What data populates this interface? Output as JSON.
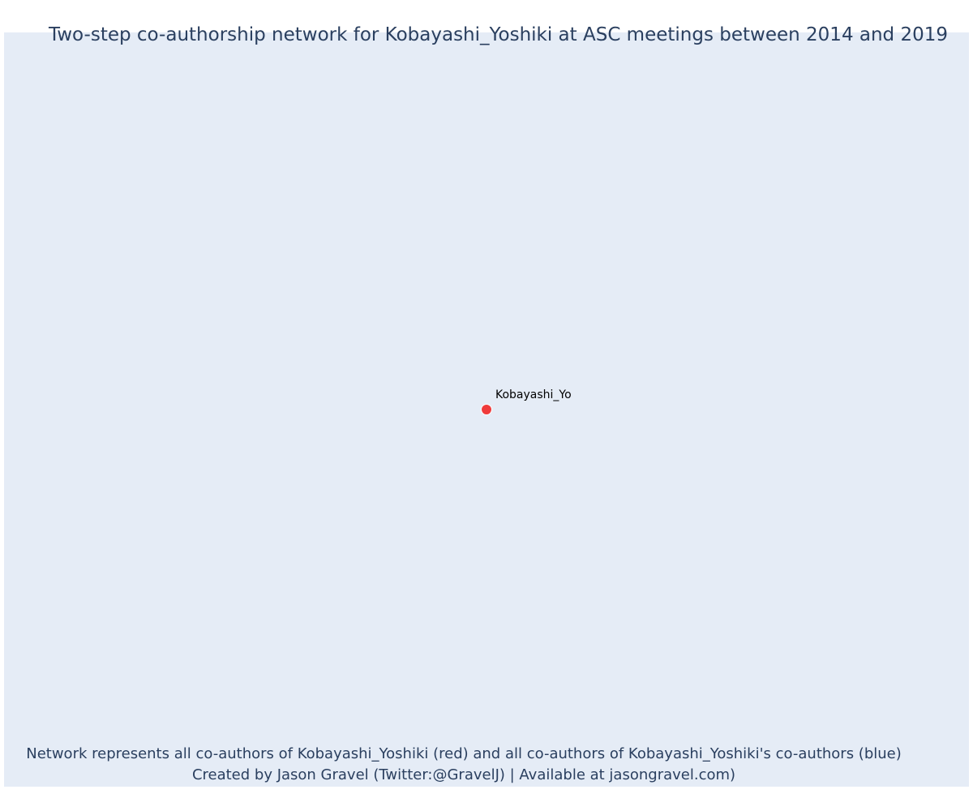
{
  "title": "Two-step co-authorship network for Kobayashi_Yoshiki at ASC meetings between 2014 and 2019",
  "footnote": {
    "line1": "Network represents all co-authors of Kobayashi_Yoshiki (red) and all co-authors of Kobayashi_Yoshiki's co-authors (blue)",
    "line2": "Created by Jason Gravel (Twitter:@GravelJ) | Available at jasongravel.com)"
  },
  "colors": {
    "plot_background": "#e5ecf6",
    "ego_node": "#ef3b3b",
    "text": "#2a3f5f"
  },
  "network": {
    "nodes": [
      {
        "label": "Kobayashi_Yo",
        "role": "ego",
        "color": "#ef3b3b"
      }
    ],
    "edges": []
  }
}
